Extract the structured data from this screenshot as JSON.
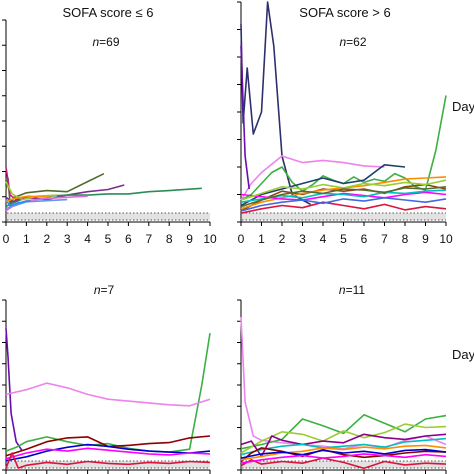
{
  "columns": {
    "left": "SOFA score ≤ 6",
    "right": "SOFA score > 6"
  },
  "side_labels": {
    "top": "Day",
    "bottom": "Day"
  },
  "x_ticks": [
    "0",
    "1",
    "2",
    "3",
    "4",
    "5",
    "6",
    "7",
    "8",
    "9",
    "10"
  ],
  "chart_data": [
    {
      "type": "line",
      "panel": "top-left",
      "title": "SOFA score ≤ 6",
      "annotation": "n=69",
      "n": 69,
      "xlim": [
        0,
        10
      ],
      "reference_band": "dotted grey band near the bottom",
      "series": [
        {
          "color": "#556b2f",
          "x": [
            0,
            0.1,
            0.2,
            0.4,
            0.7,
            1,
            2,
            3,
            4,
            4.8
          ],
          "y": [
            2.8,
            3.9,
            1.6,
            2.2,
            2.4,
            2.6,
            2.8,
            2.7,
            3.6,
            4.3
          ]
        },
        {
          "color": "#7b2d8e",
          "x": [
            0,
            0.3,
            1,
            2,
            3,
            4,
            5,
            5.8
          ],
          "y": [
            2.2,
            1.8,
            2.2,
            2.0,
            2.4,
            2.7,
            2.9,
            3.3
          ]
        },
        {
          "color": "#2e8b57",
          "x": [
            0,
            0.5,
            1,
            2,
            3,
            4,
            5,
            6,
            7,
            8,
            9.6
          ],
          "y": [
            1.4,
            1.8,
            2.2,
            2.3,
            2.4,
            2.4,
            2.5,
            2.5,
            2.7,
            2.8,
            3.0
          ]
        },
        {
          "color": "#c71585",
          "x": [
            0,
            0.2,
            0.5,
            1,
            1.5
          ],
          "y": [
            4.9,
            2.4,
            2.0,
            2.1,
            2.2
          ]
        },
        {
          "color": "#6495ed",
          "x": [
            0,
            0.5,
            1,
            2,
            3
          ],
          "y": [
            1.2,
            1.5,
            1.8,
            1.9,
            2.0
          ]
        },
        {
          "color": "#9acd32",
          "x": [
            0,
            0.3,
            0.8,
            1.5,
            2.5
          ],
          "y": [
            3.6,
            2.5,
            2.0,
            2.3,
            2.4
          ]
        },
        {
          "color": "#da70d6",
          "x": [
            0,
            0.5,
            1,
            2,
            3,
            4
          ],
          "y": [
            1.0,
            1.6,
            1.9,
            2.1,
            2.2,
            2.3
          ]
        },
        {
          "color": "#1e90ff",
          "x": [
            0,
            0.2,
            0.6,
            1.2
          ],
          "y": [
            2.0,
            1.4,
            1.7,
            1.9
          ]
        },
        {
          "color": "#ff8c00",
          "x": [
            0,
            0.4,
            1.1,
            2.2
          ],
          "y": [
            1.8,
            2.1,
            2.3,
            2.2
          ]
        }
      ]
    },
    {
      "type": "line",
      "panel": "top-right",
      "title": "SOFA score > 6",
      "annotation": "n=62",
      "n": 62,
      "xlim": [
        0,
        10
      ],
      "reference_band": "dotted grey band near the bottom",
      "series": [
        {
          "color": "#2f2f6b",
          "x": [
            0,
            0.1,
            0.3,
            0.6,
            1,
            1.3,
            1.6,
            2,
            2.5,
            3,
            3.4
          ],
          "y": [
            18,
            9,
            14,
            8,
            10,
            20,
            16,
            6,
            2.5,
            2.0,
            1.6
          ]
        },
        {
          "color": "#3cb043",
          "x": [
            0,
            0.5,
            1,
            1.5,
            2,
            2.5,
            3,
            3.5,
            4,
            4.5,
            5,
            5.5,
            6,
            6.5,
            7,
            7.5,
            8,
            8.5,
            9,
            9.5,
            10
          ],
          "y": [
            2,
            2.5,
            3.5,
            4.5,
            5.0,
            3.6,
            2.8,
            3.4,
            4.2,
            3.8,
            3.5,
            4.1,
            3.6,
            3.9,
            3.7,
            4.4,
            4.0,
            3.2,
            2.9,
            6.5,
            11.5
          ]
        },
        {
          "color": "#ee82ee",
          "x": [
            0,
            0.5,
            1,
            2,
            3,
            4,
            5,
            6,
            7
          ],
          "y": [
            2,
            3.5,
            4.5,
            6.0,
            5.4,
            5.6,
            5.4,
            5.1,
            5.0
          ]
        },
        {
          "color": "#20406b",
          "x": [
            0,
            1,
            2,
            3,
            4,
            5,
            6,
            7,
            8
          ],
          "y": [
            1.5,
            2.5,
            3.0,
            3.5,
            4.0,
            3.5,
            3.8,
            5.2,
            5.0
          ]
        },
        {
          "color": "#8b4513",
          "x": [
            0,
            1,
            2,
            3,
            4,
            5,
            6,
            7,
            8,
            9,
            10
          ],
          "y": [
            1,
            2,
            2.8,
            2.5,
            3.0,
            2.8,
            3.0,
            2.6,
            3.2,
            3.4,
            3.0
          ]
        },
        {
          "color": "#ff8c00",
          "x": [
            0,
            1,
            2,
            3,
            4,
            5,
            6,
            7,
            8,
            9,
            10
          ],
          "y": [
            1.2,
            1.8,
            2.2,
            2.6,
            2.9,
            3.1,
            3.3,
            3.6,
            3.9,
            4.0,
            4.1
          ]
        },
        {
          "color": "#ff00ff",
          "x": [
            0,
            1,
            2,
            3,
            4,
            5,
            6,
            7,
            8,
            9,
            10
          ],
          "y": [
            2.5,
            2.3,
            2.1,
            2.0,
            2.3,
            2.6,
            2.4,
            2.2,
            2.5,
            2.7,
            2.5
          ]
        },
        {
          "color": "#6a0dad",
          "x": [
            0,
            0.2,
            0.4
          ],
          "y": [
            16,
            6,
            3
          ]
        },
        {
          "color": "#dc143c",
          "x": [
            0,
            1,
            2,
            3,
            4,
            5,
            6,
            7,
            8,
            9,
            10
          ],
          "y": [
            0.8,
            1.2,
            1.5,
            1.3,
            1.8,
            1.5,
            1.2,
            1.6,
            1.1,
            1.4,
            1.2
          ]
        },
        {
          "color": "#00bfbf",
          "x": [
            0,
            1,
            2,
            3,
            4,
            5,
            6,
            7,
            8,
            9,
            10
          ],
          "y": [
            1.8,
            2.1,
            2.4,
            2.2,
            2.6,
            2.5,
            2.3,
            2.7,
            2.6,
            2.8,
            2.9
          ]
        },
        {
          "color": "#9acd32",
          "x": [
            0,
            1,
            2,
            3,
            4,
            5,
            6,
            7,
            8,
            9,
            10
          ],
          "y": [
            2.0,
            2.6,
            3.2,
            3.0,
            3.4,
            3.1,
            3.5,
            3.3,
            3.6,
            3.4,
            3.8
          ]
        },
        {
          "color": "#4169e1",
          "x": [
            0,
            1,
            2,
            3,
            4,
            5,
            6,
            7,
            8,
            9,
            10
          ],
          "y": [
            1.0,
            1.5,
            1.8,
            2.0,
            1.7,
            2.1,
            1.9,
            2.2,
            2.0,
            1.8,
            2.1
          ]
        },
        {
          "color": "#556b2f",
          "x": [
            0,
            1,
            2,
            3,
            4,
            5,
            6,
            7,
            8,
            9,
            10
          ],
          "y": [
            1.4,
            2.0,
            2.5,
            2.8,
            2.6,
            3.0,
            2.9,
            2.7,
            3.1,
            3.0,
            3.2
          ]
        }
      ]
    },
    {
      "type": "line",
      "panel": "bottom-left",
      "title": "",
      "annotation": "n=7",
      "n": 7,
      "xlim": [
        0,
        10
      ],
      "reference_band": "dotted grey band near the bottom",
      "series": [
        {
          "color": "#6a0dad",
          "x": [
            0,
            0.1,
            0.25,
            0.5,
            0.8
          ],
          "y": [
            15,
            12,
            6,
            3,
            2
          ]
        },
        {
          "color": "#3cb043",
          "x": [
            0,
            0.5,
            1,
            2,
            3,
            4,
            5,
            6,
            7,
            8,
            9,
            9.6,
            10
          ],
          "y": [
            2,
            2.4,
            3.0,
            3.5,
            3.0,
            2.6,
            2.8,
            2.3,
            2.0,
            1.9,
            2.2,
            9.0,
            14.5
          ]
        },
        {
          "color": "#ee82ee",
          "x": [
            0,
            1,
            2,
            3,
            4,
            5,
            6,
            7,
            8,
            9,
            10
          ],
          "y": [
            8,
            8.5,
            9.2,
            8.7,
            8.0,
            7.5,
            7.3,
            7.1,
            6.9,
            6.8,
            7.5
          ]
        },
        {
          "color": "#8b0000",
          "x": [
            0,
            1,
            2,
            3,
            4,
            5,
            6,
            7,
            8,
            9,
            10
          ],
          "y": [
            1.5,
            2.2,
            3.0,
            3.4,
            3.5,
            2.5,
            2.6,
            2.8,
            2.9,
            3.4,
            3.6
          ]
        },
        {
          "color": "#0000cd",
          "x": [
            0,
            1,
            2,
            3,
            4,
            5,
            6,
            7,
            8,
            9,
            10
          ],
          "y": [
            1.0,
            1.4,
            2.0,
            2.4,
            2.7,
            2.5,
            2.2,
            2.0,
            1.9,
            1.8,
            2.0
          ]
        },
        {
          "color": "#ff00ff",
          "x": [
            0,
            1,
            2,
            3,
            4,
            5,
            6,
            7,
            8,
            9,
            10
          ],
          "y": [
            1.2,
            1.8,
            2.2,
            2.0,
            2.3,
            2.1,
            1.9,
            1.7,
            1.6,
            1.8,
            1.7
          ]
        },
        {
          "color": "#dc143c",
          "x": [
            0,
            0.3,
            0.6,
            1,
            2,
            3,
            4,
            5,
            6,
            7,
            8,
            9,
            10
          ],
          "y": [
            0.2,
            1.8,
            0.2,
            0.5,
            0.8,
            0.6,
            0.9,
            0.7,
            0.6,
            0.8,
            0.7,
            0.9,
            0.8
          ]
        }
      ]
    },
    {
      "type": "line",
      "panel": "bottom-right",
      "title": "",
      "annotation": "n=11",
      "n": 11,
      "xlim": [
        0,
        10
      ],
      "reference_band": "dotted grey band near the bottom",
      "series": [
        {
          "color": "#ee82ee",
          "x": [
            0,
            0.2,
            0.4,
            0.6,
            1,
            2,
            3,
            4,
            5,
            6,
            7,
            8,
            9,
            10
          ],
          "y": [
            18,
            8,
            6,
            4,
            3.5,
            3.2,
            3.0,
            2.8,
            2.5,
            3.0,
            2.6,
            3.5,
            4.0,
            3.0
          ]
        },
        {
          "color": "#3cb043",
          "x": [
            0,
            1,
            2,
            3,
            4,
            5,
            6,
            7,
            8,
            9,
            10
          ],
          "y": [
            2.5,
            3.0,
            3.6,
            6.0,
            5.2,
            4.3,
            6.5,
            5.5,
            4.5,
            6.0,
            6.4
          ]
        },
        {
          "color": "#9acd32",
          "x": [
            0,
            1,
            2,
            3,
            4,
            5,
            6,
            7,
            8,
            9,
            10
          ],
          "y": [
            2.0,
            3.4,
            4.5,
            4.2,
            3.4,
            4.6,
            3.8,
            4.4,
            5.4,
            5.0,
            5.1
          ]
        },
        {
          "color": "#8b008b",
          "x": [
            0,
            0.5,
            1,
            1.5,
            2,
            3,
            4,
            5,
            6,
            7,
            8,
            9,
            10
          ],
          "y": [
            3,
            3.4,
            1.6,
            4.0,
            3.5,
            3.0,
            3.4,
            3.2,
            4.2,
            3.8,
            3.6,
            4.0,
            4.2
          ]
        },
        {
          "color": "#00bfbf",
          "x": [
            0,
            1,
            2,
            3,
            4,
            5,
            6,
            7,
            8,
            9,
            10
          ],
          "y": [
            1.8,
            2.4,
            2.8,
            3.0,
            2.6,
            2.8,
            3.0,
            2.7,
            3.3,
            3.5,
            3.7
          ]
        },
        {
          "color": "#8b0000",
          "x": [
            0,
            0.5,
            1,
            2,
            3,
            4,
            5,
            6,
            7,
            8,
            9,
            10
          ],
          "y": [
            1.0,
            2.0,
            2.6,
            2.2,
            1.6,
            2.4,
            1.8,
            1.5,
            1.7,
            2.0,
            2.2,
            2.1
          ]
        },
        {
          "color": "#ff8c00",
          "x": [
            0,
            1,
            2,
            3,
            4,
            5,
            6,
            7,
            8,
            9,
            10
          ],
          "y": [
            1.2,
            1.6,
            2.0,
            2.2,
            2.6,
            2.4,
            2.7,
            2.5,
            2.8,
            2.9,
            2.6
          ]
        },
        {
          "color": "#0000cd",
          "x": [
            0,
            1,
            2,
            3,
            4,
            5,
            6,
            7,
            8,
            9,
            10
          ],
          "y": [
            1.4,
            1.9,
            2.1,
            1.8,
            2.3,
            2.0,
            2.2,
            1.9,
            2.3,
            2.4,
            2.1
          ]
        },
        {
          "color": "#dc143c",
          "x": [
            0,
            0.5,
            1,
            2,
            3,
            4,
            5,
            6,
            7,
            8,
            9,
            10
          ],
          "y": [
            0.5,
            1.2,
            0.7,
            1.0,
            0.8,
            1.4,
            0.9,
            0.2,
            1.0,
            0.6,
            0.8,
            0.7
          ]
        },
        {
          "color": "#ff00ff",
          "x": [
            0,
            1,
            2,
            3,
            4,
            5,
            6,
            7,
            8,
            9,
            10
          ],
          "y": [
            0.8,
            1.2,
            1.5,
            1.7,
            1.4,
            1.6,
            1.9,
            1.7,
            1.5,
            1.8,
            1.6
          ]
        }
      ]
    }
  ]
}
